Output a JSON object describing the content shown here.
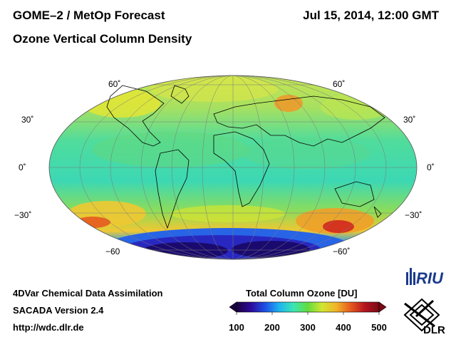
{
  "header": {
    "title": "GOME–2 / MetOp Forecast",
    "subtitle": "Ozone Vertical Column Density",
    "datetime": "Jul 15, 2014, 12:00 GMT"
  },
  "map": {
    "projection": "Mollweide",
    "latitude_labels_left": [
      "60˚",
      "30˚",
      "0˚",
      "−30˚",
      "−60"
    ],
    "latitude_labels_right": [
      "60˚",
      "30˚",
      "0˚",
      "−30˚",
      "−60˚"
    ]
  },
  "footer": {
    "line1": "4DVar Chemical Data Assimilation",
    "line2": "SACADA Version 2.4",
    "line3": "http://wdc.dlr.de"
  },
  "colorbar": {
    "title": "Total Column Ozone [DU]",
    "min": 100,
    "max": 500,
    "ticks": [
      "100",
      "200",
      "300",
      "400",
      "500"
    ],
    "colors": [
      "#1a0040",
      "#2c0a9a",
      "#1e50e6",
      "#1eb4f0",
      "#3ce6b4",
      "#64dc3c",
      "#d2e632",
      "#f0b428",
      "#e65a1e",
      "#b4141e",
      "#7a0a14"
    ]
  },
  "logos": {
    "riu": "RIU",
    "dlr": "DLR"
  },
  "colors": {
    "background": "#ffffff",
    "ocean_mid": "#32d2a0",
    "antarctic_low": "#1a0a6e"
  }
}
